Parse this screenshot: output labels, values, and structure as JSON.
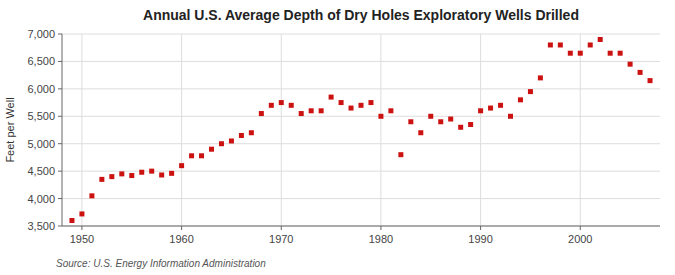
{
  "chart_data": {
    "type": "scatter",
    "title": "Annual U.S. Average Depth of Dry Holes Exploratory Wells Drilled",
    "ylabel": "Feet per Well",
    "source": "Source: U.S. Energy Information Administration",
    "color": "#cc1111",
    "marker": "square",
    "grid": true,
    "x": [
      1949,
      1950,
      1951,
      1952,
      1953,
      1954,
      1955,
      1956,
      1957,
      1958,
      1959,
      1960,
      1961,
      1962,
      1963,
      1964,
      1965,
      1966,
      1967,
      1968,
      1969,
      1970,
      1971,
      1972,
      1973,
      1974,
      1975,
      1976,
      1977,
      1978,
      1979,
      1980,
      1981,
      1982,
      1983,
      1984,
      1985,
      1986,
      1987,
      1988,
      1989,
      1990,
      1991,
      1992,
      1993,
      1994,
      1995,
      1996,
      1997,
      1998,
      1999,
      2000,
      2001,
      2002,
      2003,
      2004,
      2005,
      2006,
      2007
    ],
    "values": [
      3600,
      3720,
      4050,
      4350,
      4400,
      4450,
      4420,
      4480,
      4500,
      4430,
      4460,
      4600,
      4780,
      4780,
      4900,
      5000,
      5050,
      5150,
      5200,
      5550,
      5700,
      5750,
      5700,
      5550,
      5600,
      5600,
      5850,
      5750,
      5650,
      5700,
      5750,
      5500,
      5600,
      4800,
      5400,
      5200,
      5500,
      5400,
      5450,
      5300,
      5350,
      5600,
      5650,
      5700,
      5500,
      5800,
      5950,
      6200,
      6800,
      6800,
      6650,
      6650,
      6800,
      6900,
      6650,
      6650,
      6450,
      6300,
      6150
    ],
    "xlim": [
      1948,
      2008
    ],
    "xticks": [
      1950,
      1960,
      1970,
      1980,
      1990,
      2000
    ],
    "ylim": [
      3500,
      7000
    ],
    "yticks": [
      {
        "value": 3500,
        "label": "3,500"
      },
      {
        "value": 4000,
        "label": "4,000"
      },
      {
        "value": 4500,
        "label": "4,500"
      },
      {
        "value": 5000,
        "label": "5,000"
      },
      {
        "value": 5500,
        "label": "5,500"
      },
      {
        "value": 6000,
        "label": "6,000"
      },
      {
        "value": 6500,
        "label": "6,500"
      },
      {
        "value": 7000,
        "label": "7,000"
      }
    ]
  }
}
